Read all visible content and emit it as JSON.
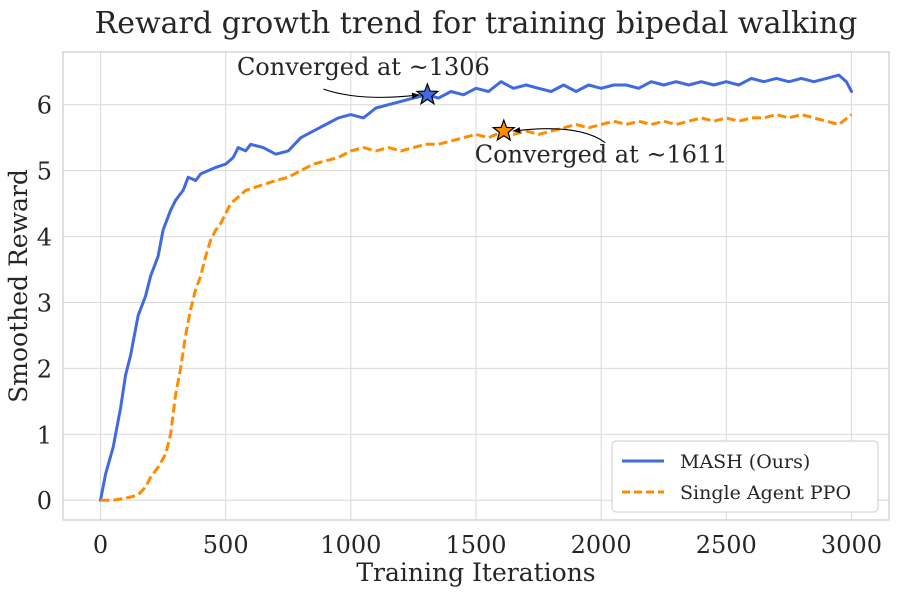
{
  "chart_data": {
    "type": "line",
    "title": "Reward growth trend for training bipedal walking",
    "xlabel": "Training Iterations",
    "ylabel": "Smoothed Reward",
    "xlim": [
      -150,
      3150
    ],
    "ylim": [
      -0.3,
      6.8
    ],
    "xticks": [
      0,
      500,
      1000,
      1500,
      2000,
      2500,
      3000
    ],
    "yticks": [
      0,
      1,
      2,
      3,
      4,
      5,
      6
    ],
    "grid": true,
    "legend_position": "lower-right",
    "series": [
      {
        "name": "MASH (Ours)",
        "color": "#4169e1",
        "style": "solid",
        "points": [
          [
            0,
            0.0
          ],
          [
            20,
            0.4
          ],
          [
            50,
            0.8
          ],
          [
            80,
            1.4
          ],
          [
            100,
            1.9
          ],
          [
            120,
            2.2
          ],
          [
            150,
            2.8
          ],
          [
            180,
            3.1
          ],
          [
            200,
            3.4
          ],
          [
            230,
            3.7
          ],
          [
            250,
            4.1
          ],
          [
            280,
            4.4
          ],
          [
            300,
            4.55
          ],
          [
            330,
            4.7
          ],
          [
            350,
            4.9
          ],
          [
            380,
            4.85
          ],
          [
            400,
            4.95
          ],
          [
            430,
            5.0
          ],
          [
            460,
            5.05
          ],
          [
            500,
            5.1
          ],
          [
            530,
            5.2
          ],
          [
            550,
            5.35
          ],
          [
            580,
            5.3
          ],
          [
            600,
            5.4
          ],
          [
            650,
            5.35
          ],
          [
            700,
            5.25
          ],
          [
            750,
            5.3
          ],
          [
            800,
            5.5
          ],
          [
            850,
            5.6
          ],
          [
            900,
            5.7
          ],
          [
            950,
            5.8
          ],
          [
            1000,
            5.85
          ],
          [
            1050,
            5.8
          ],
          [
            1100,
            5.95
          ],
          [
            1150,
            6.0
          ],
          [
            1200,
            6.05
          ],
          [
            1250,
            6.1
          ],
          [
            1306,
            6.15
          ],
          [
            1350,
            6.1
          ],
          [
            1400,
            6.2
          ],
          [
            1450,
            6.15
          ],
          [
            1500,
            6.25
          ],
          [
            1550,
            6.2
          ],
          [
            1600,
            6.35
          ],
          [
            1650,
            6.25
          ],
          [
            1700,
            6.3
          ],
          [
            1750,
            6.25
          ],
          [
            1800,
            6.2
          ],
          [
            1850,
            6.3
          ],
          [
            1900,
            6.2
          ],
          [
            1950,
            6.3
          ],
          [
            2000,
            6.25
          ],
          [
            2050,
            6.3
          ],
          [
            2100,
            6.3
          ],
          [
            2150,
            6.25
          ],
          [
            2200,
            6.35
          ],
          [
            2250,
            6.3
          ],
          [
            2300,
            6.35
          ],
          [
            2350,
            6.3
          ],
          [
            2400,
            6.35
          ],
          [
            2450,
            6.3
          ],
          [
            2500,
            6.35
          ],
          [
            2550,
            6.3
          ],
          [
            2600,
            6.4
          ],
          [
            2650,
            6.35
          ],
          [
            2700,
            6.4
          ],
          [
            2750,
            6.35
          ],
          [
            2800,
            6.4
          ],
          [
            2850,
            6.35
          ],
          [
            2900,
            6.4
          ],
          [
            2950,
            6.45
          ],
          [
            2980,
            6.35
          ],
          [
            3000,
            6.2
          ]
        ]
      },
      {
        "name": "Single Agent PPO",
        "color": "#ff8c00",
        "style": "dashed",
        "points": [
          [
            0,
            0.0
          ],
          [
            50,
            0.0
          ],
          [
            100,
            0.03
          ],
          [
            150,
            0.08
          ],
          [
            180,
            0.2
          ],
          [
            200,
            0.35
          ],
          [
            230,
            0.5
          ],
          [
            260,
            0.7
          ],
          [
            280,
            1.0
          ],
          [
            300,
            1.6
          ],
          [
            320,
            2.0
          ],
          [
            340,
            2.5
          ],
          [
            360,
            2.9
          ],
          [
            380,
            3.2
          ],
          [
            400,
            3.4
          ],
          [
            420,
            3.7
          ],
          [
            440,
            3.95
          ],
          [
            460,
            4.1
          ],
          [
            480,
            4.2
          ],
          [
            500,
            4.35
          ],
          [
            520,
            4.5
          ],
          [
            550,
            4.6
          ],
          [
            580,
            4.7
          ],
          [
            620,
            4.75
          ],
          [
            660,
            4.8
          ],
          [
            700,
            4.85
          ],
          [
            750,
            4.9
          ],
          [
            800,
            5.0
          ],
          [
            850,
            5.1
          ],
          [
            900,
            5.15
          ],
          [
            950,
            5.2
          ],
          [
            1000,
            5.3
          ],
          [
            1050,
            5.35
          ],
          [
            1100,
            5.3
          ],
          [
            1150,
            5.35
          ],
          [
            1200,
            5.3
          ],
          [
            1250,
            5.35
          ],
          [
            1300,
            5.4
          ],
          [
            1350,
            5.4
          ],
          [
            1400,
            5.45
          ],
          [
            1450,
            5.5
          ],
          [
            1500,
            5.55
          ],
          [
            1550,
            5.5
          ],
          [
            1611,
            5.6
          ],
          [
            1650,
            5.55
          ],
          [
            1700,
            5.6
          ],
          [
            1750,
            5.55
          ],
          [
            1800,
            5.6
          ],
          [
            1850,
            5.65
          ],
          [
            1900,
            5.7
          ],
          [
            1950,
            5.65
          ],
          [
            2000,
            5.7
          ],
          [
            2050,
            5.75
          ],
          [
            2100,
            5.7
          ],
          [
            2150,
            5.75
          ],
          [
            2200,
            5.7
          ],
          [
            2250,
            5.75
          ],
          [
            2300,
            5.7
          ],
          [
            2350,
            5.75
          ],
          [
            2400,
            5.8
          ],
          [
            2450,
            5.75
          ],
          [
            2500,
            5.8
          ],
          [
            2550,
            5.75
          ],
          [
            2600,
            5.8
          ],
          [
            2650,
            5.8
          ],
          [
            2700,
            5.85
          ],
          [
            2750,
            5.8
          ],
          [
            2800,
            5.85
          ],
          [
            2850,
            5.8
          ],
          [
            2900,
            5.75
          ],
          [
            2950,
            5.7
          ],
          [
            3000,
            5.85
          ]
        ]
      }
    ],
    "annotations": [
      {
        "text": "Converged at ~1306",
        "point": [
          1306,
          6.15
        ],
        "color": "#4169e1",
        "text_anchor_data": [
          1050,
          6.45
        ],
        "curve_dir": -1
      },
      {
        "text": "Converged at ~1611",
        "point": [
          1611,
          5.6
        ],
        "color": "#ff8c00",
        "text_anchor_data": [
          2000,
          5.12
        ],
        "curve_dir": 1
      }
    ]
  }
}
